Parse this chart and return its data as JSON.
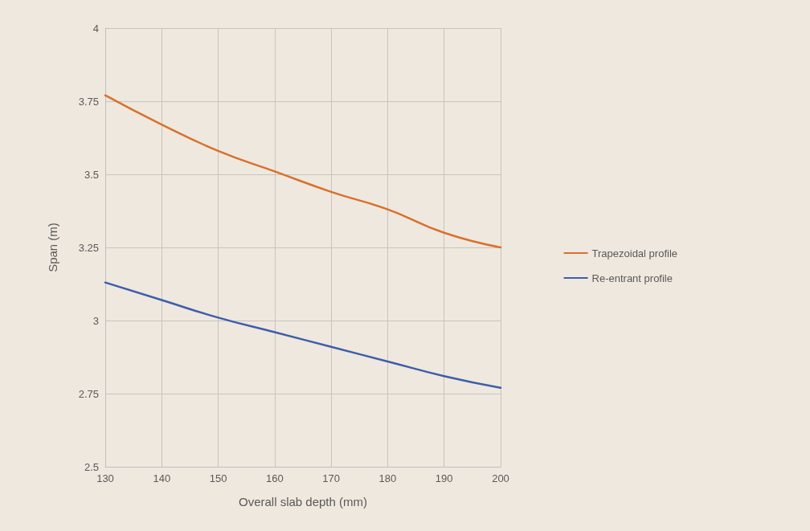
{
  "chart_data": {
    "type": "line",
    "xlabel": "Overall slab depth (mm)",
    "ylabel": "Span (m)",
    "x": [
      130,
      140,
      150,
      160,
      170,
      180,
      190,
      200
    ],
    "series": [
      {
        "name": "Trapezoidal profile",
        "color": "#d9702e",
        "values": [
          3.77,
          3.67,
          3.58,
          3.51,
          3.44,
          3.38,
          3.3,
          3.25
        ]
      },
      {
        "name": "Re-entrant profile",
        "color": "#3d5eab",
        "values": [
          3.13,
          3.07,
          3.01,
          2.96,
          2.91,
          2.86,
          2.81,
          2.77
        ]
      }
    ],
    "xlim": [
      130,
      200
    ],
    "xticks": [
      130,
      140,
      150,
      160,
      170,
      180,
      190,
      200
    ],
    "ylim": [
      2.5,
      4
    ],
    "yticks": [
      2.5,
      2.75,
      3,
      3.25,
      3.5,
      3.75,
      4
    ],
    "grid": true,
    "legend": "right",
    "marker": "none",
    "line_style": "solid"
  }
}
